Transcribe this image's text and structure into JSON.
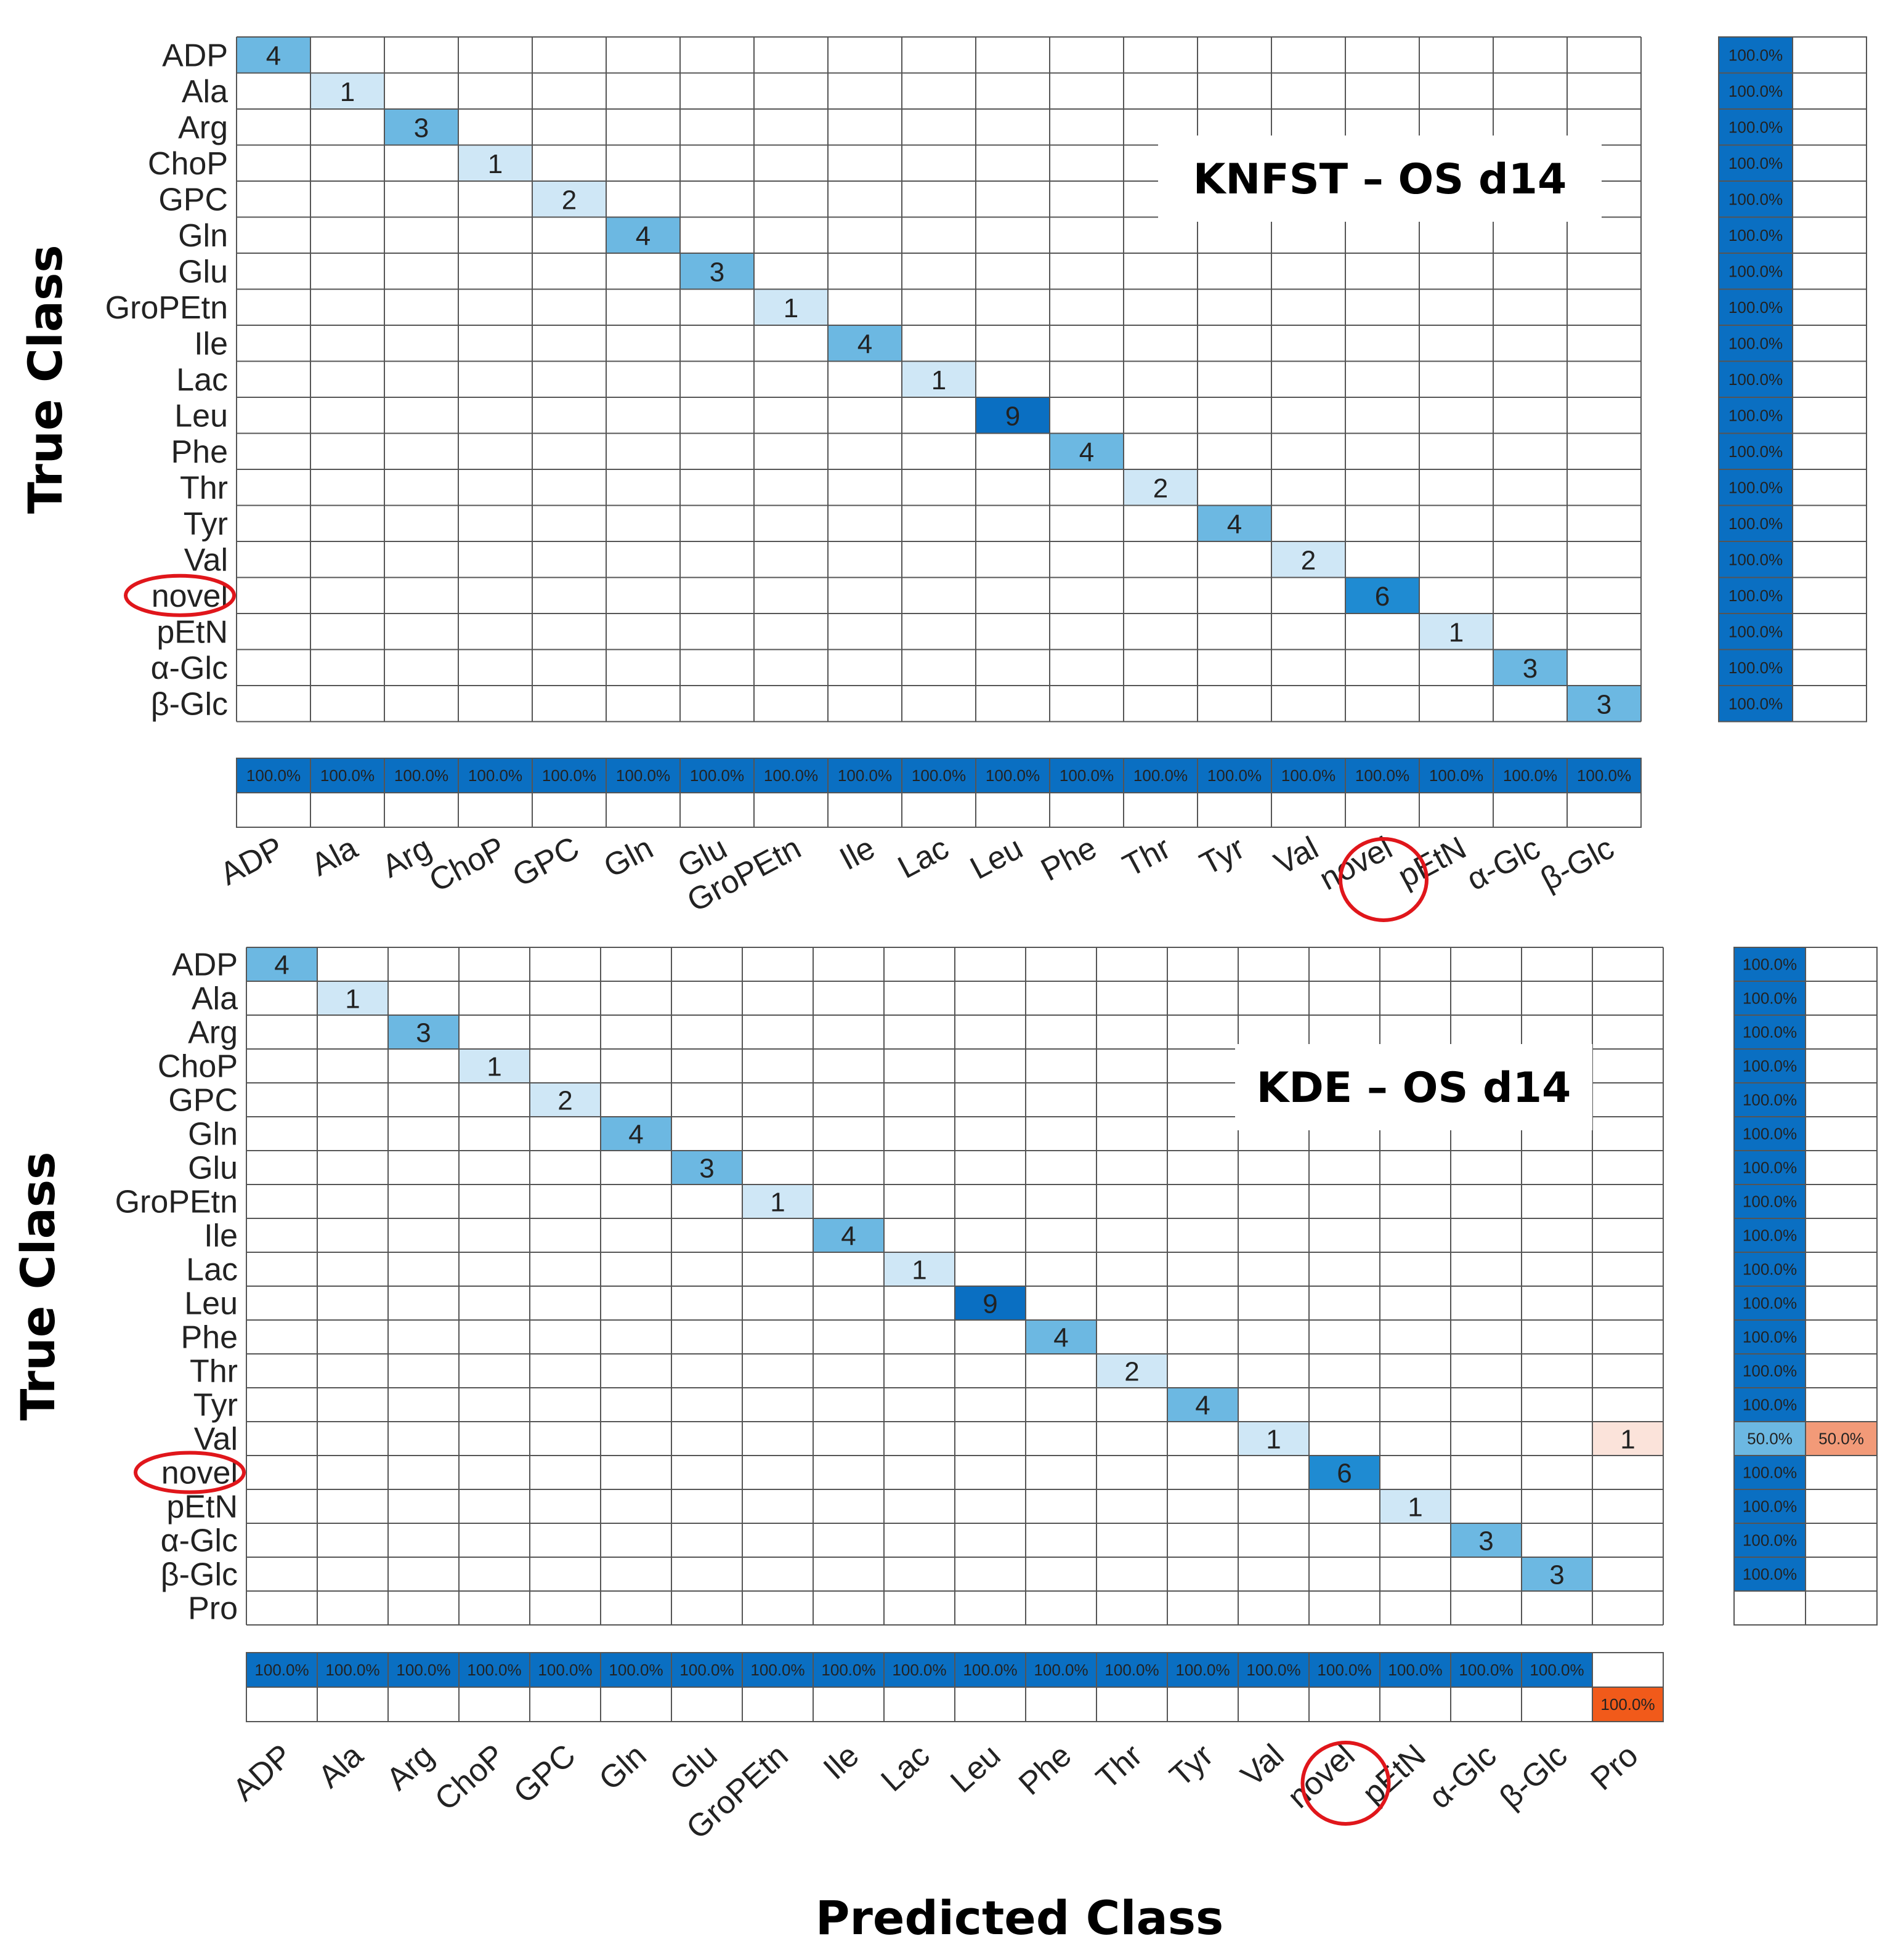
{
  "chart_data": [
    {
      "type": "heatmap",
      "subtype": "confusion-matrix",
      "title": "KNFST – OS d14",
      "ylabel": "True Class",
      "true_classes": [
        "ADP",
        "Ala",
        "Arg",
        "ChoP",
        "GPC",
        "Gln",
        "Glu",
        "GroPEtn",
        "Ile",
        "Lac",
        "Leu",
        "Phe",
        "Thr",
        "Tyr",
        "Val",
        "novel",
        "pEtN",
        "α-Glc",
        "β-Glc"
      ],
      "predicted_classes": [
        "ADP",
        "Ala",
        "Arg",
        "ChoP",
        "GPC",
        "Gln",
        "Glu",
        "GroPEtn",
        "Ile",
        "Lac",
        "Leu",
        "Phe",
        "Thr",
        "Tyr",
        "Val",
        "novel",
        "pEtN",
        "α-Glc",
        "β-Glc"
      ],
      "nonzero_cells": [
        {
          "row": 0,
          "col": 0,
          "value": 4
        },
        {
          "row": 1,
          "col": 1,
          "value": 1
        },
        {
          "row": 2,
          "col": 2,
          "value": 3
        },
        {
          "row": 3,
          "col": 3,
          "value": 1
        },
        {
          "row": 4,
          "col": 4,
          "value": 2
        },
        {
          "row": 5,
          "col": 5,
          "value": 4
        },
        {
          "row": 6,
          "col": 6,
          "value": 3
        },
        {
          "row": 7,
          "col": 7,
          "value": 1
        },
        {
          "row": 8,
          "col": 8,
          "value": 4
        },
        {
          "row": 9,
          "col": 9,
          "value": 1
        },
        {
          "row": 10,
          "col": 10,
          "value": 9
        },
        {
          "row": 11,
          "col": 11,
          "value": 4
        },
        {
          "row": 12,
          "col": 12,
          "value": 2
        },
        {
          "row": 13,
          "col": 13,
          "value": 4
        },
        {
          "row": 14,
          "col": 14,
          "value": 2
        },
        {
          "row": 15,
          "col": 15,
          "value": 6
        },
        {
          "row": 16,
          "col": 16,
          "value": 1
        },
        {
          "row": 17,
          "col": 17,
          "value": 3
        },
        {
          "row": 18,
          "col": 18,
          "value": 3
        }
      ],
      "row_summary": [
        [
          "100.0%",
          ""
        ],
        [
          "100.0%",
          ""
        ],
        [
          "100.0%",
          ""
        ],
        [
          "100.0%",
          ""
        ],
        [
          "100.0%",
          ""
        ],
        [
          "100.0%",
          ""
        ],
        [
          "100.0%",
          ""
        ],
        [
          "100.0%",
          ""
        ],
        [
          "100.0%",
          ""
        ],
        [
          "100.0%",
          ""
        ],
        [
          "100.0%",
          ""
        ],
        [
          "100.0%",
          ""
        ],
        [
          "100.0%",
          ""
        ],
        [
          "100.0%",
          ""
        ],
        [
          "100.0%",
          ""
        ],
        [
          "100.0%",
          ""
        ],
        [
          "100.0%",
          ""
        ],
        [
          "100.0%",
          ""
        ],
        [
          "100.0%",
          ""
        ]
      ],
      "col_summary_correct": [
        "100.0%",
        "100.0%",
        "100.0%",
        "100.0%",
        "100.0%",
        "100.0%",
        "100.0%",
        "100.0%",
        "100.0%",
        "100.0%",
        "100.0%",
        "100.0%",
        "100.0%",
        "100.0%",
        "100.0%",
        "100.0%",
        "100.0%",
        "100.0%",
        "100.0%"
      ],
      "col_summary_incorrect": [
        "",
        "",
        "",
        "",
        "",
        "",
        "",
        "",
        "",
        "",
        "",
        "",
        "",
        "",
        "",
        "",
        "",
        "",
        ""
      ],
      "highlight_label": "novel"
    },
    {
      "type": "heatmap",
      "subtype": "confusion-matrix",
      "title": "KDE – OS d14",
      "ylabel": "True Class",
      "xlabel": "Predicted Class",
      "true_classes": [
        "ADP",
        "Ala",
        "Arg",
        "ChoP",
        "GPC",
        "Gln",
        "Glu",
        "GroPEtn",
        "Ile",
        "Lac",
        "Leu",
        "Phe",
        "Thr",
        "Tyr",
        "Val",
        "novel",
        "pEtN",
        "α-Glc",
        "β-Glc",
        "Pro"
      ],
      "predicted_classes": [
        "ADP",
        "Ala",
        "Arg",
        "ChoP",
        "GPC",
        "Gln",
        "Glu",
        "GroPEtn",
        "Ile",
        "Lac",
        "Leu",
        "Phe",
        "Thr",
        "Tyr",
        "Val",
        "novel",
        "pEtN",
        "α-Glc",
        "β-Glc",
        "Pro"
      ],
      "nonzero_cells": [
        {
          "row": 0,
          "col": 0,
          "value": 4
        },
        {
          "row": 1,
          "col": 1,
          "value": 1
        },
        {
          "row": 2,
          "col": 2,
          "value": 3
        },
        {
          "row": 3,
          "col": 3,
          "value": 1
        },
        {
          "row": 4,
          "col": 4,
          "value": 2
        },
        {
          "row": 5,
          "col": 5,
          "value": 4
        },
        {
          "row": 6,
          "col": 6,
          "value": 3
        },
        {
          "row": 7,
          "col": 7,
          "value": 1
        },
        {
          "row": 8,
          "col": 8,
          "value": 4
        },
        {
          "row": 9,
          "col": 9,
          "value": 1
        },
        {
          "row": 10,
          "col": 10,
          "value": 9
        },
        {
          "row": 11,
          "col": 11,
          "value": 4
        },
        {
          "row": 12,
          "col": 12,
          "value": 2
        },
        {
          "row": 13,
          "col": 13,
          "value": 4
        },
        {
          "row": 14,
          "col": 14,
          "value": 1
        },
        {
          "row": 14,
          "col": 19,
          "value": 1,
          "error": true
        },
        {
          "row": 15,
          "col": 15,
          "value": 6
        },
        {
          "row": 16,
          "col": 16,
          "value": 1
        },
        {
          "row": 17,
          "col": 17,
          "value": 3
        },
        {
          "row": 18,
          "col": 18,
          "value": 3
        }
      ],
      "row_summary": [
        [
          "100.0%",
          ""
        ],
        [
          "100.0%",
          ""
        ],
        [
          "100.0%",
          ""
        ],
        [
          "100.0%",
          ""
        ],
        [
          "100.0%",
          ""
        ],
        [
          "100.0%",
          ""
        ],
        [
          "100.0%",
          ""
        ],
        [
          "100.0%",
          ""
        ],
        [
          "100.0%",
          ""
        ],
        [
          "100.0%",
          ""
        ],
        [
          "100.0%",
          ""
        ],
        [
          "100.0%",
          ""
        ],
        [
          "100.0%",
          ""
        ],
        [
          "100.0%",
          ""
        ],
        [
          "50.0%",
          "50.0%"
        ],
        [
          "100.0%",
          ""
        ],
        [
          "100.0%",
          ""
        ],
        [
          "100.0%",
          ""
        ],
        [
          "100.0%",
          ""
        ],
        [
          "",
          ""
        ]
      ],
      "col_summary_correct": [
        "100.0%",
        "100.0%",
        "100.0%",
        "100.0%",
        "100.0%",
        "100.0%",
        "100.0%",
        "100.0%",
        "100.0%",
        "100.0%",
        "100.0%",
        "100.0%",
        "100.0%",
        "100.0%",
        "100.0%",
        "100.0%",
        "100.0%",
        "100.0%",
        "100.0%",
        ""
      ],
      "col_summary_incorrect": [
        "",
        "",
        "",
        "",
        "",
        "",
        "",
        "",
        "",
        "",
        "",
        "",
        "",
        "",
        "",
        "",
        "",
        "",
        "",
        "100.0%"
      ],
      "highlight_label": "novel"
    }
  ],
  "colors": {
    "grid": "#555555",
    "high": "#0a6fc2",
    "medium": "#1f8bd2",
    "low": "#6cb8e2",
    "very_low": "#cfe7f6",
    "error_light": "#fbe3da",
    "error_medium": "#f29a78",
    "error_strong": "#f15a1a",
    "highlight": "#e0161b"
  }
}
